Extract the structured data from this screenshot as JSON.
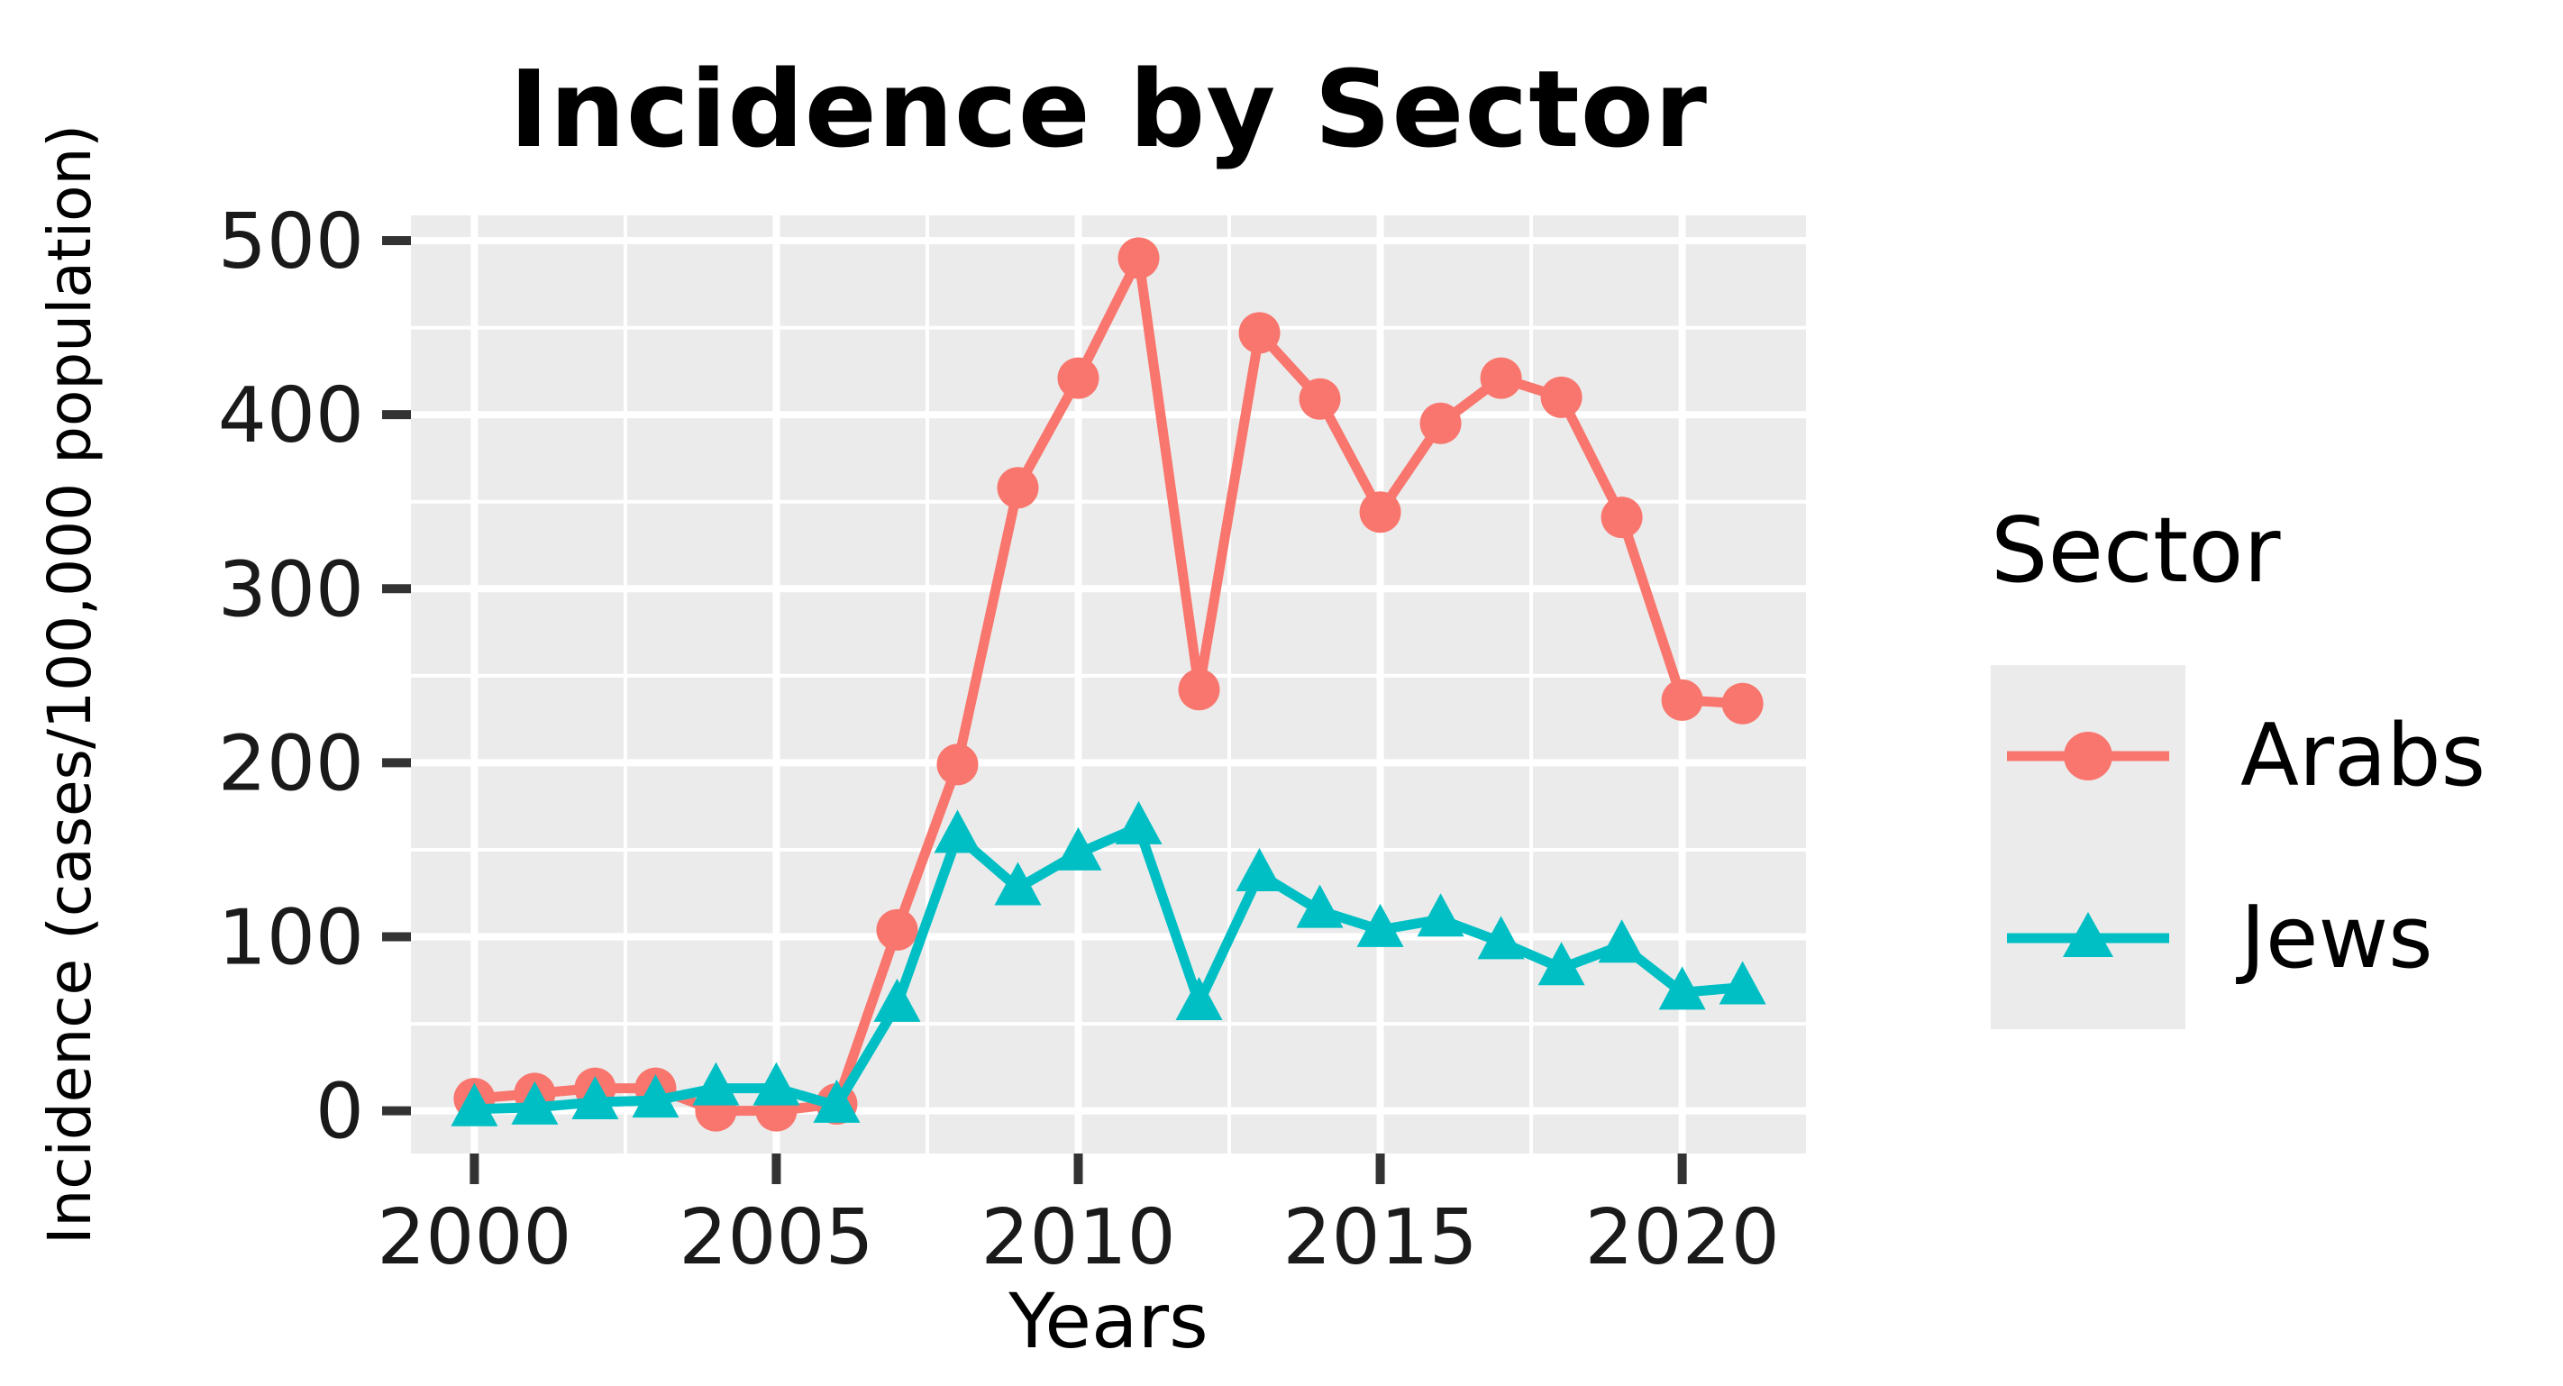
{
  "chart_data": {
    "type": "line",
    "title": "Incidence by Sector",
    "xlabel": "Years",
    "ylabel": "Incidence (cases/100,000 population)",
    "x": [
      2000,
      2001,
      2002,
      2003,
      2004,
      2005,
      2006,
      2007,
      2008,
      2009,
      2010,
      2011,
      2012,
      2013,
      2014,
      2015,
      2016,
      2017,
      2018,
      2019,
      2020,
      2021
    ],
    "series": [
      {
        "name": "Arabs",
        "color": "#F8766D",
        "marker": "circle",
        "values": [
          7,
          10,
          13,
          13,
          0,
          0,
          4,
          104,
          199,
          358,
          421,
          490,
          242,
          447,
          409,
          344,
          395,
          421,
          410,
          341,
          236,
          234
        ]
      },
      {
        "name": "Jews",
        "color": "#00BFC4",
        "marker": "triangle",
        "values": [
          1,
          2,
          5,
          6,
          13,
          13,
          3,
          61,
          158,
          128,
          148,
          163,
          62,
          136,
          115,
          104,
          110,
          97,
          82,
          95,
          68,
          71
        ]
      }
    ],
    "x_ticks": [
      2000,
      2005,
      2010,
      2015,
      2020
    ],
    "x_minor_gridlines": [
      2002.5,
      2007.5,
      2012.5,
      2017.5
    ],
    "y_ticks": [
      0,
      100,
      200,
      300,
      400,
      500
    ],
    "y_minor_gridlines": [
      50,
      150,
      250,
      350,
      450
    ],
    "xlim": [
      1998.95,
      2022.05
    ],
    "ylim": [
      -24.5,
      514.5
    ],
    "grid": "on",
    "legend_position": "right",
    "legend_title": "Sector",
    "panel_bg": "#EBEBEB",
    "grid_color": "#FFFFFF",
    "tick_color": "#333333",
    "text_color": "#1A1A1A"
  }
}
